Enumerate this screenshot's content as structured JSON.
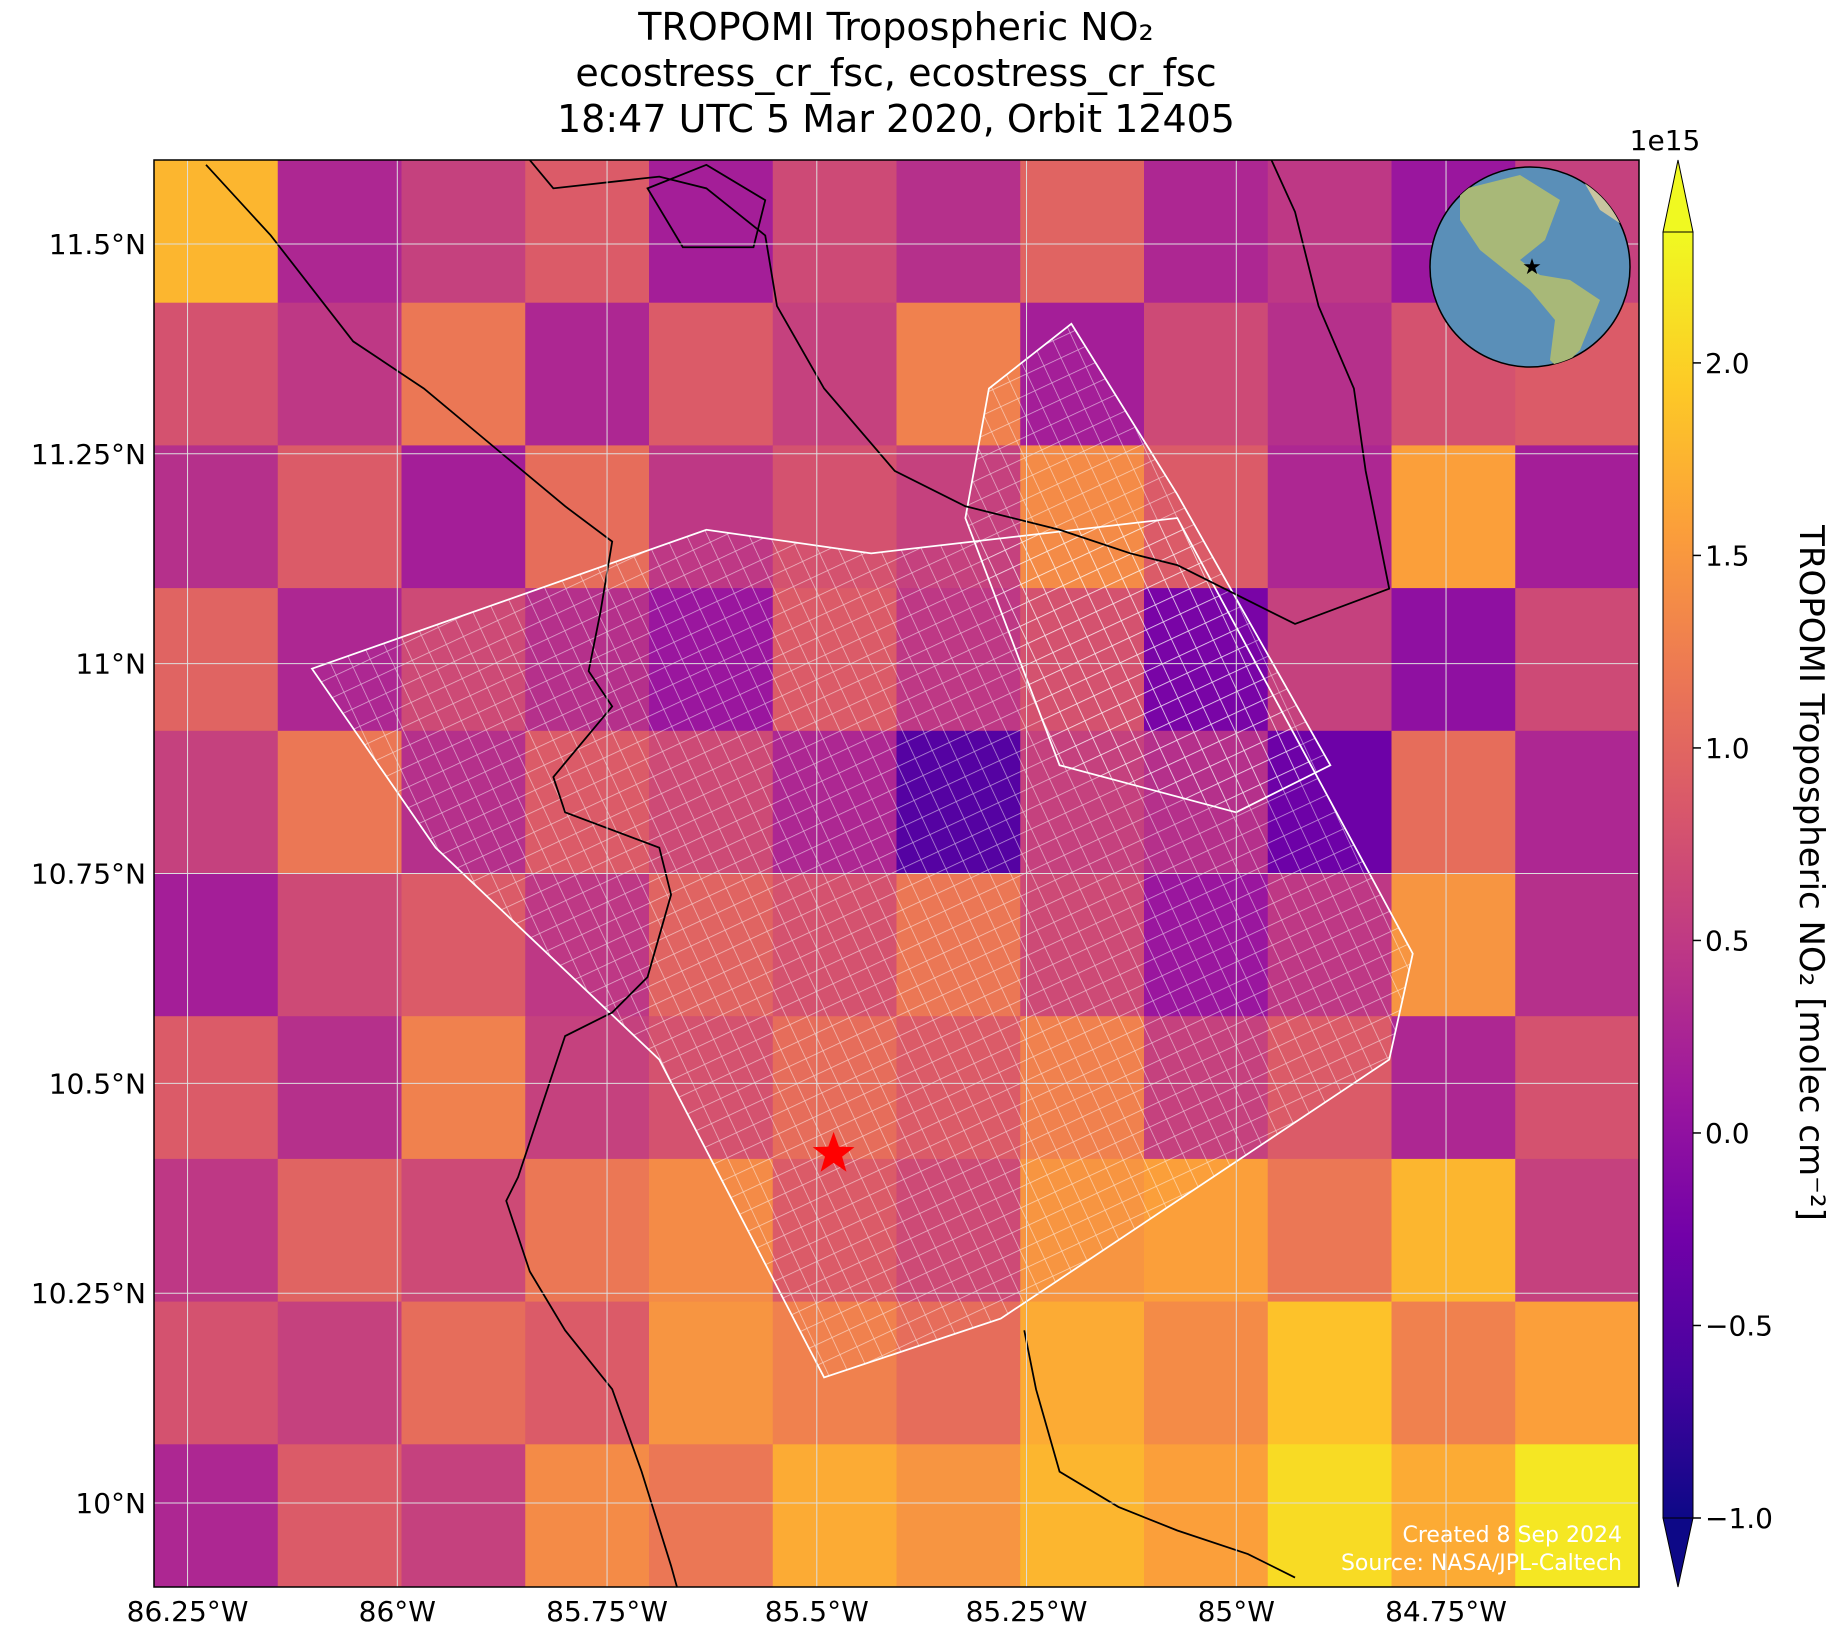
{
  "chart_data": {
    "type": "heatmap-map",
    "title": [
      "TROPOMI Tropospheric NO₂",
      "ecostress_cr_fsc, ecostress_cr_fsc",
      "18:47 UTC 5 Mar 2020, Orbit 12405"
    ],
    "xlim": [
      -86.29,
      -84.52
    ],
    "ylim": [
      9.9,
      11.6
    ],
    "xticks": [
      {
        "value": -86.25,
        "label": "86.25°W"
      },
      {
        "value": -86,
        "label": "86°W"
      },
      {
        "value": -85.75,
        "label": "85.75°W"
      },
      {
        "value": -85.5,
        "label": "85.5°W"
      },
      {
        "value": -85.25,
        "label": "85.25°W"
      },
      {
        "value": -85,
        "label": "85°W"
      },
      {
        "value": -84.75,
        "label": "84.75°W"
      }
    ],
    "yticks": [
      {
        "value": 11.5,
        "label": "11.5°N"
      },
      {
        "value": 11.25,
        "label": "11.25°N"
      },
      {
        "value": 11,
        "label": "11°N"
      },
      {
        "value": 10.75,
        "label": "10.75°N"
      },
      {
        "value": 10.5,
        "label": "10.5°N"
      },
      {
        "value": 10.25,
        "label": "10.25°N"
      },
      {
        "value": 10,
        "label": "10°N"
      }
    ],
    "grid": true,
    "colorbar": {
      "label": "TROPOMI Tropospheric NO₂ [molec cm⁻²]",
      "offset": "1e15",
      "clim": [
        -1.0,
        2.34
      ],
      "ticks": [
        {
          "value": -1.0,
          "label": "−1.0"
        },
        {
          "value": -0.5,
          "label": "−0.5"
        },
        {
          "value": 0.0,
          "label": "0.0"
        },
        {
          "value": 0.5,
          "label": "0.5"
        },
        {
          "value": 1.0,
          "label": "1.0"
        },
        {
          "value": 1.5,
          "label": "1.5"
        },
        {
          "value": 2.0,
          "label": "2.0"
        }
      ]
    },
    "grid_values": [
      [
        1.8,
        0.3,
        0.6,
        0.9,
        0.2,
        0.7,
        0.4,
        1.0,
        0.3,
        0.5,
        0.1,
        0.6
      ],
      [
        0.8,
        0.5,
        1.2,
        0.3,
        0.9,
        0.6,
        1.3,
        0.2,
        0.7,
        0.4,
        0.8,
        0.9
      ],
      [
        0.4,
        0.9,
        0.2,
        1.1,
        0.5,
        0.8,
        0.6,
        1.4,
        0.9,
        0.3,
        1.6,
        0.2
      ],
      [
        1.0,
        0.3,
        0.7,
        0.4,
        0.1,
        0.9,
        0.5,
        0.8,
        -0.2,
        0.6,
        0.0,
        0.7
      ],
      [
        0.6,
        1.2,
        0.4,
        0.9,
        0.7,
        0.3,
        -0.5,
        0.6,
        0.4,
        -0.3,
        1.1,
        0.3
      ],
      [
        0.2,
        0.7,
        0.9,
        0.5,
        1.0,
        0.8,
        1.2,
        0.7,
        0.1,
        0.5,
        1.5,
        0.4
      ],
      [
        0.9,
        0.4,
        1.3,
        0.6,
        0.8,
        1.1,
        0.9,
        1.3,
        0.6,
        0.9,
        0.3,
        0.8
      ],
      [
        0.5,
        1.0,
        0.7,
        1.2,
        1.4,
        0.9,
        0.7,
        1.5,
        1.6,
        1.2,
        1.8,
        0.6
      ],
      [
        0.8,
        0.6,
        1.1,
        0.9,
        1.5,
        1.3,
        1.1,
        1.7,
        1.4,
        1.9,
        1.3,
        1.6
      ],
      [
        0.3,
        0.9,
        0.6,
        1.4,
        1.2,
        1.7,
        1.5,
        1.8,
        1.6,
        2.1,
        1.7,
        2.2
      ]
    ],
    "marker": {
      "lon": -85.48,
      "lat": 10.416,
      "color": "#ff0000"
    },
    "notes": [
      "Created 8 Sep 2024",
      "Source: NASA/JPL-Caltech"
    ]
  }
}
